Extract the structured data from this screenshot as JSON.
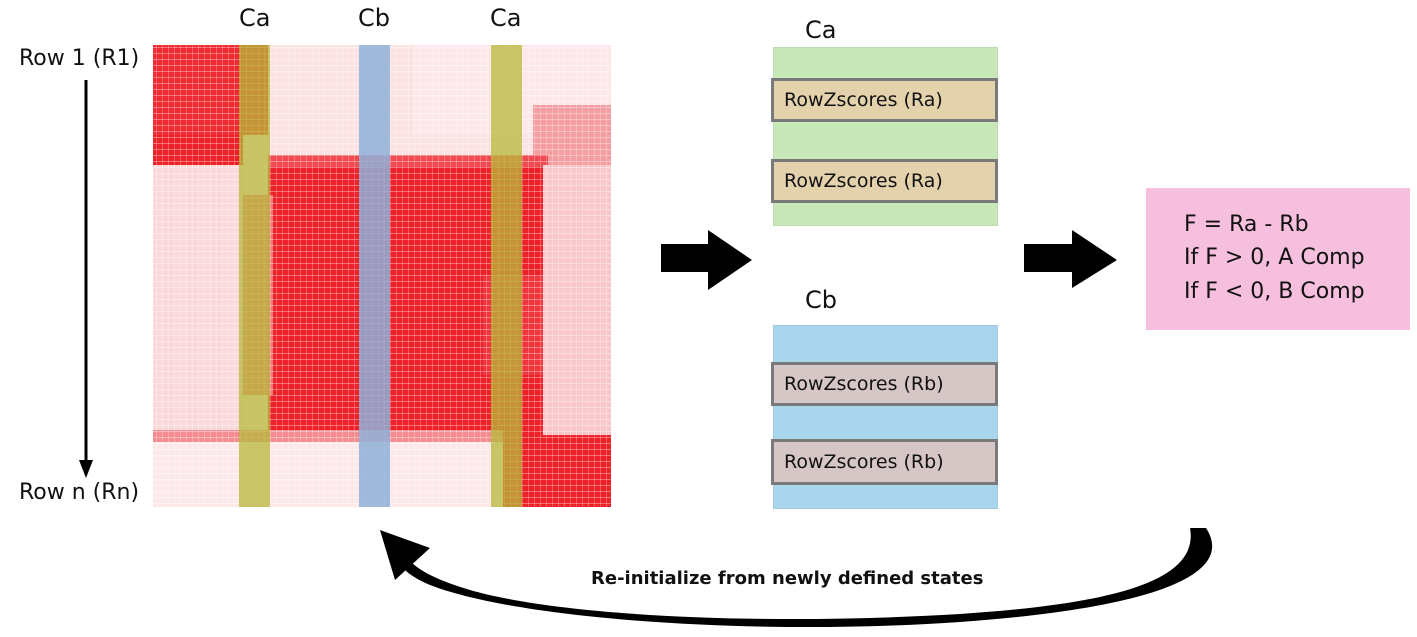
{
  "columns": {
    "ca_left": "Ca",
    "cb": "Cb",
    "ca_right": "Ca"
  },
  "rows": {
    "first": "Row 1 (R1)",
    "last": "Row n (Rn)"
  },
  "panel_a": {
    "title": "Ca",
    "box1": "RowZscores (Ra)",
    "box2": "RowZscores (Ra)"
  },
  "panel_b": {
    "title": "Cb",
    "box1": "RowZscores (Rb)",
    "box2": "RowZscores (Rb)"
  },
  "formula": {
    "line1": "F = Ra - Rb",
    "line2": "If F > 0, A Comp",
    "line3": "If F < 0, B Comp"
  },
  "feedback_caption": "Re-initialize from newly defined states",
  "colors": {
    "heat_red": "#ee2028",
    "band_ca": "#b7b83a",
    "band_cb": "#8fb0d8",
    "panel_a": "#c9e8b9",
    "panel_b": "#a9d6ec",
    "formula_bg": "#f6bfdd"
  }
}
